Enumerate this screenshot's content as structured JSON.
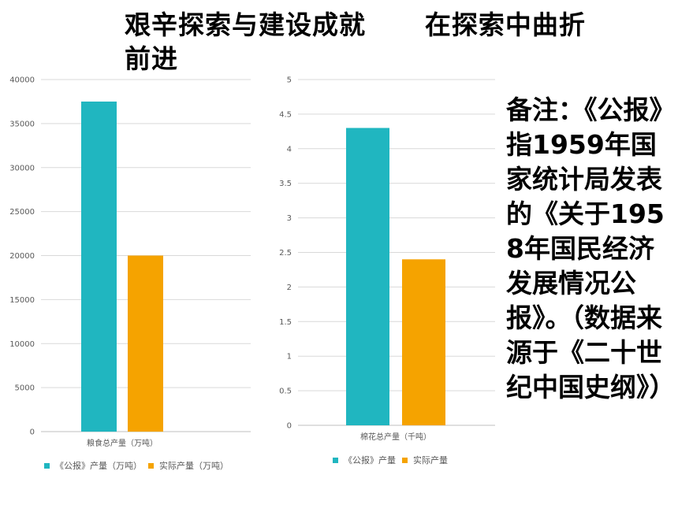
{
  "title": "艰辛探索与建设成就      在探索中曲折前进",
  "note": "备注：《公报》指1959年国家统计局发表的《关于1958年国民经济发展情况公报》。（数据来源于《二十世纪中国史纲》）",
  "colors": {
    "teal": "#20b6c0",
    "orange": "#f5a300",
    "grid": "#d9d9d9",
    "axis": "#bfbfbf"
  },
  "chart_data": [
    {
      "type": "bar",
      "categories": [
        "粮食总产量（万吨）"
      ],
      "series": [
        {
          "name": "《公报》产量（万吨）",
          "values": [
            37500
          ]
        },
        {
          "name": "实际产量（万吨）",
          "values": [
            20000
          ]
        }
      ],
      "yticks": [
        "0",
        "5000",
        "10000",
        "15000",
        "20000",
        "25000",
        "30000",
        "35000",
        "40000"
      ],
      "ylim": [
        0,
        40000
      ],
      "legend": "bottom",
      "grid": true
    },
    {
      "type": "bar",
      "categories": [
        "棉花总产量（千吨）"
      ],
      "series": [
        {
          "name": "《公报》产量",
          "values": [
            4.3
          ]
        },
        {
          "name": "实际产量",
          "values": [
            2.4
          ]
        }
      ],
      "yticks": [
        "0",
        "0.5",
        "1",
        "1.5",
        "2",
        "2.5",
        "3",
        "3.5",
        "4",
        "4.5",
        "5"
      ],
      "ylim": [
        0,
        5
      ],
      "legend": "bottom",
      "grid": true
    }
  ]
}
